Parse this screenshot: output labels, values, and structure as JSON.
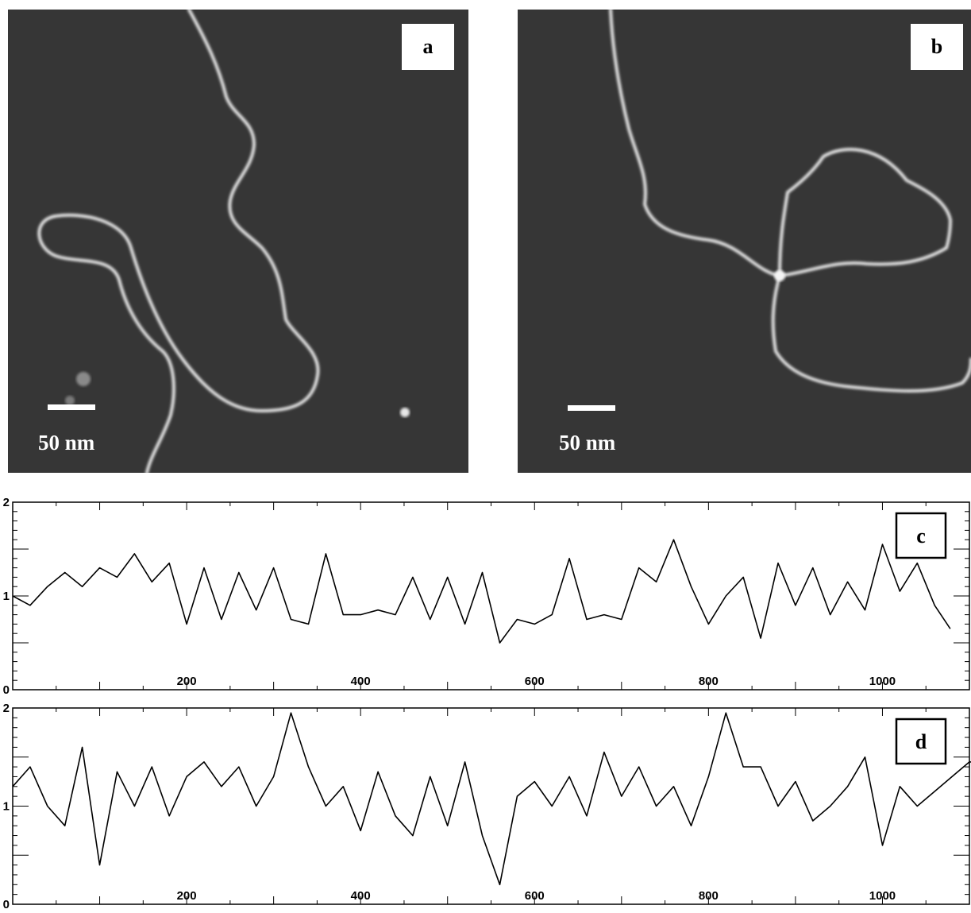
{
  "panels": {
    "a": {
      "label": "a",
      "scale_bar": "50 nm"
    },
    "b": {
      "label": "b",
      "scale_bar": "50 nm"
    }
  },
  "chart_data": [
    {
      "type": "line",
      "panel_label": "c",
      "xlim": [
        0,
        1100
      ],
      "ylim": [
        0,
        2
      ],
      "x_ticks": [
        200,
        400,
        600,
        800,
        1000
      ],
      "y_ticks": [
        0,
        1,
        2
      ],
      "series": [
        {
          "x": [
            0,
            20,
            40,
            60,
            80,
            100,
            120,
            140,
            160,
            180,
            200,
            220,
            240,
            260,
            280,
            300,
            320,
            340,
            360,
            380,
            400,
            420,
            440,
            460,
            480,
            500,
            520,
            540,
            560,
            580,
            600,
            620,
            640,
            660,
            680,
            700,
            720,
            740,
            760,
            780,
            800,
            820,
            840,
            860,
            880,
            900,
            920,
            940,
            960,
            980,
            1000,
            1020,
            1040,
            1060,
            1078
          ],
          "values": [
            1.0,
            0.9,
            1.1,
            1.25,
            1.1,
            1.3,
            1.2,
            1.45,
            1.15,
            1.35,
            0.7,
            1.3,
            0.75,
            1.25,
            0.85,
            1.3,
            0.75,
            0.7,
            1.45,
            0.8,
            0.8,
            0.85,
            0.8,
            1.2,
            0.75,
            1.2,
            0.7,
            1.25,
            0.5,
            0.75,
            0.7,
            0.8,
            1.4,
            0.75,
            0.8,
            0.75,
            1.3,
            1.15,
            1.6,
            1.1,
            0.7,
            1.0,
            1.2,
            0.55,
            1.35,
            0.9,
            1.3,
            0.8,
            1.15,
            0.85,
            1.55,
            1.05,
            1.35,
            0.9,
            0.65
          ]
        }
      ]
    },
    {
      "type": "line",
      "panel_label": "d",
      "xlim": [
        0,
        1100
      ],
      "ylim": [
        0,
        2
      ],
      "x_ticks": [
        200,
        400,
        600,
        800,
        1000
      ],
      "y_ticks": [
        0,
        1,
        2
      ],
      "series": [
        {
          "x": [
            0,
            20,
            40,
            60,
            80,
            100,
            120,
            140,
            160,
            180,
            200,
            220,
            240,
            260,
            280,
            300,
            320,
            340,
            360,
            380,
            400,
            420,
            440,
            460,
            480,
            500,
            520,
            540,
            560,
            580,
            600,
            620,
            640,
            660,
            680,
            700,
            720,
            740,
            760,
            780,
            800,
            820,
            840,
            860,
            880,
            900,
            920,
            940,
            960,
            980,
            1000,
            1020,
            1040,
            1060,
            1080,
            1100,
            1110
          ],
          "values": [
            1.2,
            1.4,
            1.0,
            0.8,
            1.6,
            0.4,
            1.35,
            1.0,
            1.4,
            0.9,
            1.3,
            1.45,
            1.2,
            1.4,
            1.0,
            1.3,
            1.95,
            1.4,
            1.0,
            1.2,
            0.75,
            1.35,
            0.9,
            0.7,
            1.3,
            0.8,
            1.45,
            0.7,
            0.2,
            1.1,
            1.25,
            1.0,
            1.3,
            0.9,
            1.55,
            1.1,
            1.4,
            1.0,
            1.2,
            0.8,
            1.3,
            1.95,
            1.4,
            1.4,
            1.0,
            1.25,
            0.85,
            1.0,
            1.2,
            1.5,
            0.6,
            1.2,
            1.0,
            1.15,
            1.3,
            1.45,
            1.45
          ]
        }
      ]
    }
  ]
}
